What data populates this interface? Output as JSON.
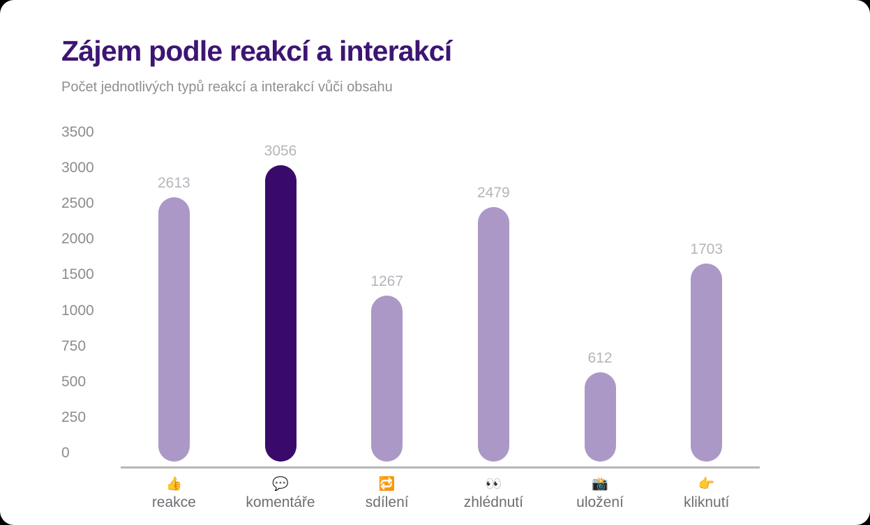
{
  "window": {
    "background_color": "#000000",
    "card_background_color": "#FFFFFF"
  },
  "chart_data": {
    "type": "bar",
    "title": "Zájem podle reakcí a interakcí",
    "subtitle": "Počet jednotlivých typů reakcí a interakcí vůči obsahu",
    "categories": [
      "reakce",
      "komentáře",
      "sdílení",
      "zhlédnutí",
      "uložení",
      "kliknutí"
    ],
    "values": [
      2613,
      3056,
      1267,
      2479,
      612,
      1703
    ],
    "value_labels": [
      "2613",
      "3056",
      "1267",
      "2479",
      "612",
      "1703"
    ],
    "icons": [
      "thumbs-up-icon",
      "speech-balloon-icon",
      "repeat-arrows-icon",
      "eyes-icon",
      "camera-flash-icon",
      "pointing-right-icon"
    ],
    "icon_glyphs": [
      "👍",
      "💬",
      "🔁",
      "👀",
      "📸",
      "👉"
    ],
    "bar_colors": [
      "#AC98C6",
      "#3A0A6B",
      "#AC98C6",
      "#AC98C6",
      "#AC98C6",
      "#AC98C6"
    ],
    "y_ticks": [
      0,
      250,
      500,
      750,
      1000,
      1500,
      2000,
      2500,
      3000,
      3500
    ],
    "ylim": [
      0,
      3500
    ],
    "xlabel": "",
    "ylabel": "",
    "grid": false,
    "legend": false,
    "axis_note": "y tick labels are evenly spaced: steps of 250 up to 1000, then steps of 500 up to 3500",
    "colors": {
      "bar_default": "#AC98C6",
      "bar_highlight": "#3A0A6B",
      "title": "#3D1573",
      "subtitle": "#8E8E93",
      "tick_label": "#8C8C91",
      "value_label": "#B6B4BA",
      "category_label": "#6E6E73",
      "axis_line": "#B6B6B9"
    }
  }
}
